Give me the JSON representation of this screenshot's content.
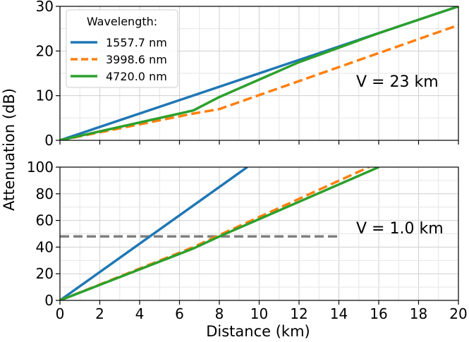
{
  "chart_data": {
    "type": "line",
    "shared": {
      "xlabel": "Distance (km)",
      "ylabel": "Attenuation (dB)",
      "xlim": [
        0,
        20
      ],
      "xticks": [
        0,
        2,
        4,
        6,
        8,
        10,
        12,
        14,
        16,
        18,
        20
      ],
      "grid": true,
      "colors": {
        "s1557": "#1f77b4",
        "s3998": "#ff7f0e",
        "s4720": "#2ca02c",
        "reference": "#808080"
      }
    },
    "legend": {
      "title": "Wavelength:",
      "placement": "top-left of upper panel",
      "entries": [
        "1557.7 nm",
        "3998.6 nm",
        "4720.0 nm"
      ]
    },
    "panels": [
      {
        "name": "top",
        "annotation": "V = 23 km",
        "ylim": [
          0,
          30
        ],
        "yticks": [
          0,
          10,
          20,
          30
        ],
        "series": [
          {
            "name": "1557.7 nm",
            "style": "solid",
            "x": [
              0,
              20
            ],
            "y": [
              0,
              30
            ]
          },
          {
            "name": "3998.6 nm",
            "style": "dashed",
            "x": [
              0,
              6.7,
              8,
              20
            ],
            "y": [
              0,
              6,
              7,
              25.8
            ]
          },
          {
            "name": "4720.0 nm",
            "style": "solid",
            "x": [
              0,
              6.7,
              8,
              12,
              16,
              20
            ],
            "y": [
              0,
              6.7,
              9.7,
              17.5,
              24,
              30
            ]
          }
        ]
      },
      {
        "name": "bottom",
        "annotation": "V = 1.0 km",
        "ylim": [
          0,
          100
        ],
        "yticks": [
          0,
          20,
          40,
          60,
          80,
          100
        ],
        "series": [
          {
            "name": "1557.7 nm",
            "style": "solid",
            "x": [
              0,
              9.4
            ],
            "y": [
              0,
              100
            ]
          },
          {
            "name": "3998.6 nm",
            "style": "dashed",
            "x": [
              0,
              6.7,
              8,
              15.5
            ],
            "y": [
              0,
              40,
              49,
              100
            ]
          },
          {
            "name": "4720.0 nm",
            "style": "solid",
            "x": [
              0,
              6.7,
              8,
              16
            ],
            "y": [
              0,
              39,
              48,
              100
            ]
          }
        ],
        "reference_line": {
          "y": 48,
          "x": [
            0,
            14
          ],
          "style": "dashed"
        }
      }
    ]
  }
}
